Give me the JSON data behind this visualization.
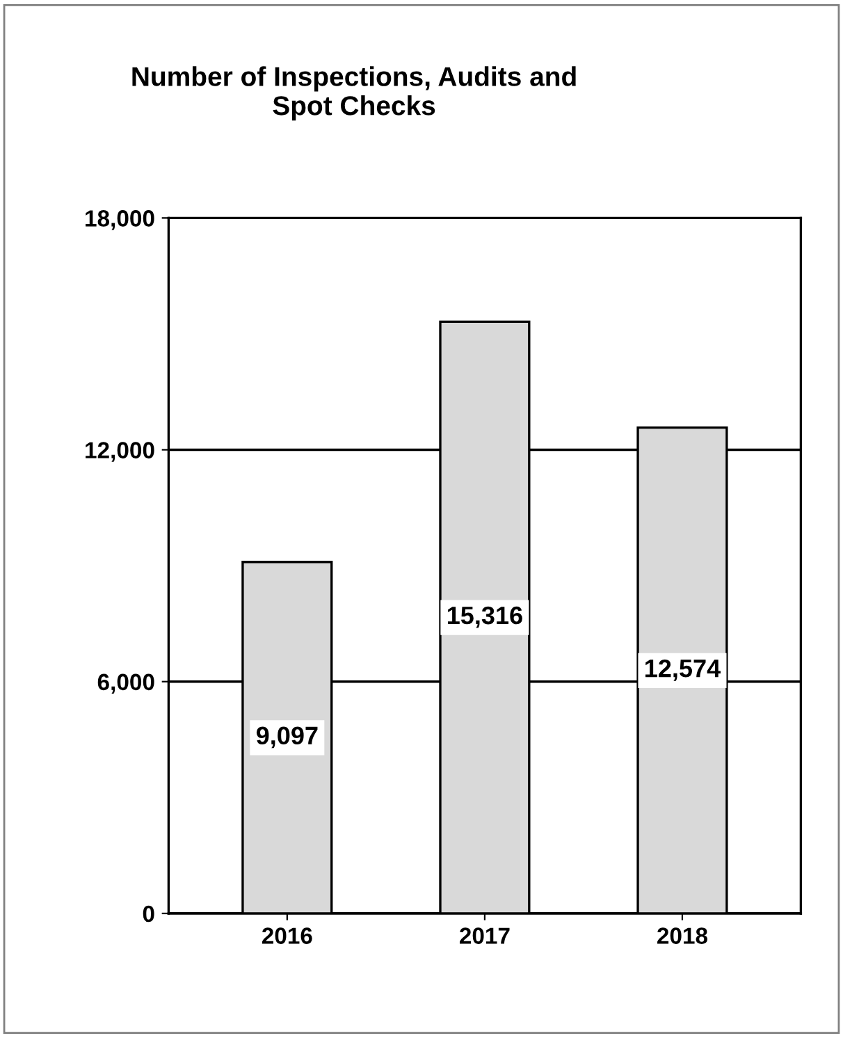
{
  "chart_data": {
    "type": "bar",
    "title": "Number of Inspections, Audits and\nSpot Checks",
    "categories": [
      "2016",
      "2017",
      "2018"
    ],
    "values": [
      9097,
      15316,
      12574
    ],
    "value_labels": [
      "9,097",
      "15,316",
      "12,574"
    ],
    "color": "#d9d9d9",
    "ylim": [
      0,
      18000
    ],
    "yticks": [
      {
        "value": 0,
        "label": "0"
      },
      {
        "value": 6000,
        "label": "6,000"
      },
      {
        "value": 12000,
        "label": "12,000"
      },
      {
        "value": 18000,
        "label": "18,000"
      }
    ],
    "grid": "y",
    "legend": false
  }
}
